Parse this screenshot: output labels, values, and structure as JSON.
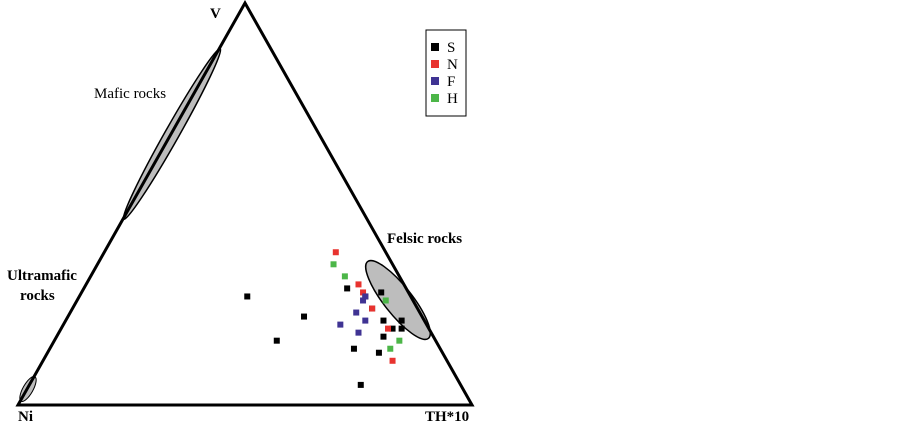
{
  "chart_data": {
    "type": "ternary",
    "vertices": {
      "top": "V",
      "left": "Ni",
      "right": "TH*10"
    },
    "annotations": {
      "mafic": "Mafic rocks",
      "felsic": "Felsic rocks",
      "ultramafic_1": "Ultramafic",
      "ultramafic_2": "rocks"
    },
    "series": [
      {
        "name": "S",
        "color": "#000000",
        "v": [
          27,
          22,
          16,
          29,
          27,
          28,
          24,
          21,
          19,
          21,
          19,
          17,
          14,
          13,
          5
        ],
        "ni": [
          36,
          26,
          35,
          13,
          10,
          6,
          10,
          9,
          8,
          5,
          6,
          11,
          19,
          14,
          22
        ],
        "th": [
          37,
          52,
          49,
          58,
          63,
          66,
          66,
          70,
          73,
          74,
          75,
          72,
          67,
          73,
          73
        ]
      },
      {
        "name": "N",
        "color": "#e8332f",
        "v": [
          38,
          30,
          28,
          24,
          19,
          11
        ],
        "ni": [
          11,
          10,
          10,
          10,
          9,
          12
        ],
        "th": [
          51,
          60,
          62,
          66,
          72,
          77
        ]
      },
      {
        "name": "F",
        "color": "#3f3393",
        "v": [
          26,
          23,
          21,
          20,
          18,
          27
        ],
        "ni": [
          11,
          14,
          13,
          19,
          16,
          10
        ],
        "th": [
          63,
          63,
          66,
          61,
          66,
          63
        ]
      },
      {
        "name": "H",
        "color": "#4cb648",
        "v": [
          35,
          32,
          26,
          16,
          14
        ],
        "ni": [
          13,
          12,
          6,
          8,
          11
        ],
        "th": [
          52,
          56,
          68,
          76,
          75
        ]
      }
    ]
  }
}
